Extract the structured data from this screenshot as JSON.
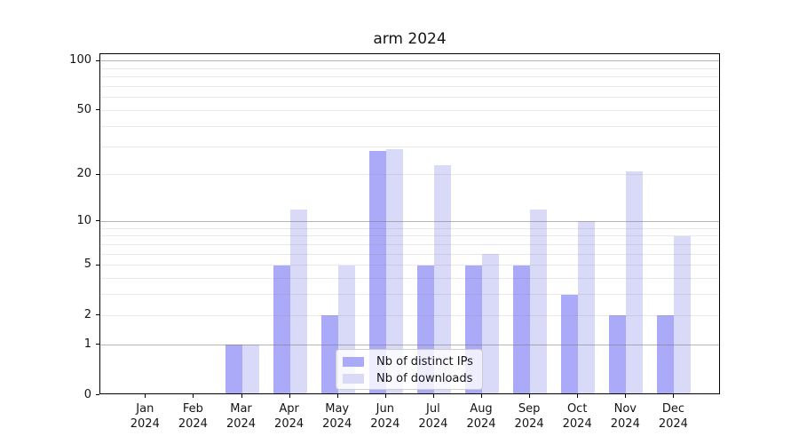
{
  "chart_data": {
    "type": "bar",
    "title": "arm 2024",
    "categories": [
      "Jan 2024",
      "Feb 2024",
      "Mar 2024",
      "Apr 2024",
      "May 2024",
      "Jun 2024",
      "Jul 2024",
      "Aug 2024",
      "Sep 2024",
      "Oct 2024",
      "Nov 2024",
      "Dec 2024"
    ],
    "series": [
      {
        "key": "distinct-ips",
        "name": "Nb of distinct IPs",
        "color": "#aaaaf8",
        "values": [
          0,
          0,
          1,
          5,
          2,
          28,
          5,
          5,
          5,
          3,
          2,
          2
        ]
      },
      {
        "key": "downloads",
        "name": "Nb of downloads",
        "color": "#d9d9f8",
        "values": [
          0,
          0,
          1,
          12,
          5,
          29,
          23,
          6,
          12,
          10,
          21,
          8
        ]
      }
    ],
    "y_axis": {
      "scale": "log(1+x)",
      "range": [
        0,
        110
      ],
      "tick_labels": [
        0,
        1,
        2,
        5,
        10,
        20,
        50,
        100
      ],
      "gridlines_major": [
        1,
        10,
        100
      ],
      "gridlines_minor": [
        2,
        3,
        4,
        5,
        6,
        7,
        8,
        9,
        20,
        30,
        40,
        50,
        60,
        70,
        80,
        90
      ]
    },
    "xlabel": "",
    "ylabel": "",
    "grid": true,
    "grid_on_top_of_bars": true,
    "legend": {
      "position": "lower center",
      "entries": [
        "Nb of distinct IPs",
        "Nb of downloads"
      ]
    },
    "background": "#ffffff"
  },
  "style": {
    "grid_major_color": "rgba(120,120,120,0.55)",
    "grid_minor_color": "rgba(120,120,120,0.16)",
    "spine_color": "#000000",
    "text_color": "#141414",
    "legend_border_color": "#cccccc",
    "legend_background": "rgba(255,255,255,0.8)"
  }
}
